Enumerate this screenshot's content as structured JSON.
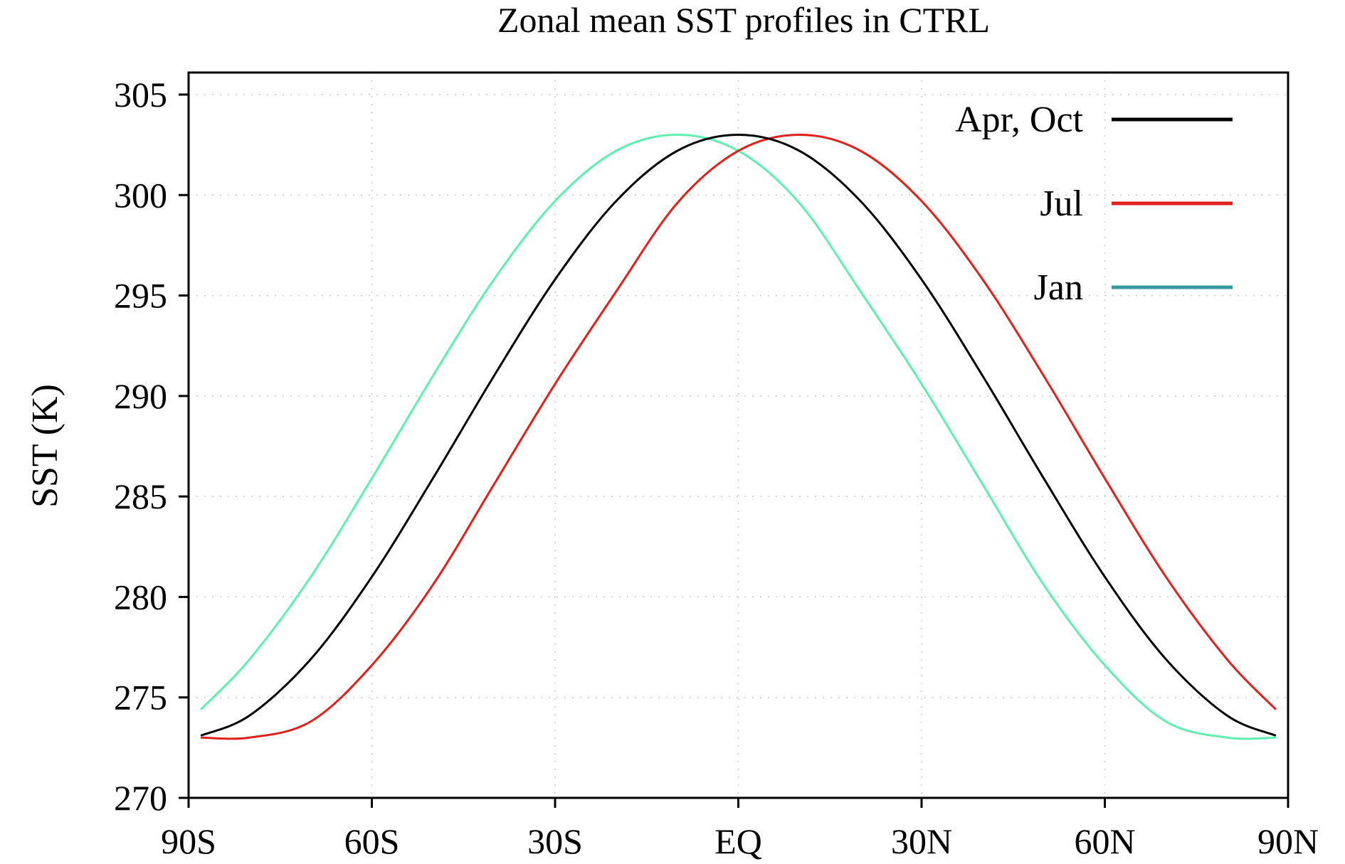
{
  "chart_data": {
    "type": "line",
    "title": "Zonal mean SST profiles in CTRL",
    "xlabel": "",
    "ylabel": "SST (K)",
    "xlim": [
      -90,
      90
    ],
    "ylim": [
      270,
      305
    ],
    "xticks": [
      {
        "value": -90,
        "label": "90S"
      },
      {
        "value": -60,
        "label": "60S"
      },
      {
        "value": -30,
        "label": "30S"
      },
      {
        "value": 0,
        "label": "EQ"
      },
      {
        "value": 30,
        "label": "30N"
      },
      {
        "value": 60,
        "label": "60N"
      },
      {
        "value": 90,
        "label": "90N"
      }
    ],
    "yticks": [
      {
        "value": 270,
        "label": "270"
      },
      {
        "value": 275,
        "label": "275"
      },
      {
        "value": 280,
        "label": "280"
      },
      {
        "value": 285,
        "label": "285"
      },
      {
        "value": 290,
        "label": "290"
      },
      {
        "value": 295,
        "label": "295"
      },
      {
        "value": 300,
        "label": "300"
      },
      {
        "value": 305,
        "label": "305"
      }
    ],
    "grid": true,
    "legend_position": "top-right",
    "x": [
      -88,
      -80,
      -70,
      -60,
      -50,
      -40,
      -30,
      -20,
      -10,
      0,
      10,
      20,
      30,
      40,
      50,
      60,
      70,
      80,
      88
    ],
    "series": [
      {
        "name": "Apr, Oct",
        "color": "#000000",
        "values": [
          273.1,
          274.1,
          276.9,
          281.0,
          285.9,
          291.0,
          295.8,
          299.7,
          302.2,
          303.0,
          302.2,
          299.7,
          295.8,
          291.0,
          285.9,
          281.0,
          276.9,
          274.1,
          273.1
        ]
      },
      {
        "name": "Jul",
        "color": "#e0201a",
        "values": [
          273.0,
          273.0,
          273.8,
          276.6,
          280.6,
          285.6,
          290.6,
          295.2,
          299.6,
          302.2,
          303.0,
          302.2,
          299.7,
          295.8,
          291.0,
          285.9,
          281.0,
          276.9,
          274.4
        ]
      },
      {
        "name": "Jan",
        "color": "#5ef0b0",
        "legend_color": "#3a9aa0",
        "values": [
          274.4,
          276.9,
          281.0,
          285.9,
          291.0,
          295.8,
          299.7,
          302.2,
          303.0,
          302.2,
          299.6,
          295.2,
          290.6,
          285.6,
          280.6,
          276.6,
          273.8,
          273.0,
          273.0
        ]
      }
    ]
  }
}
